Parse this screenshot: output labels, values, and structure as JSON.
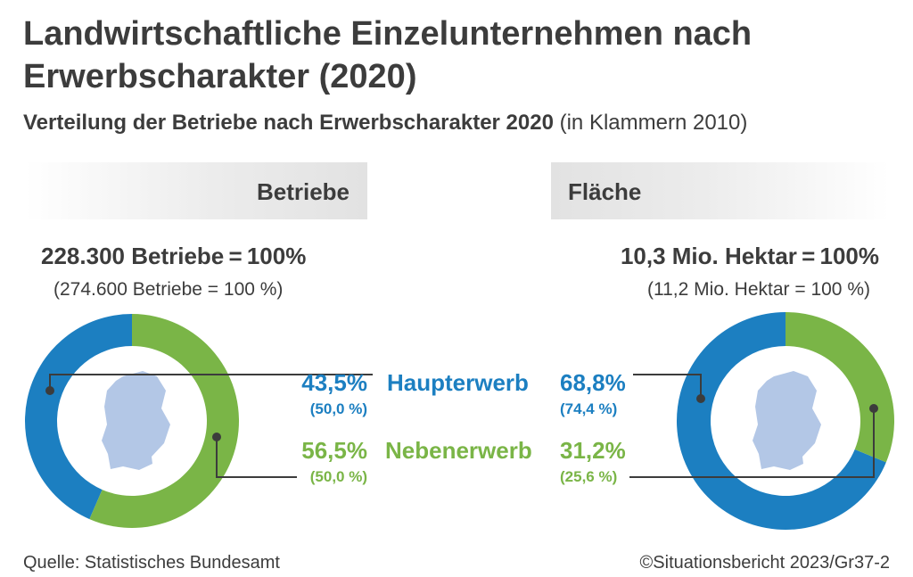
{
  "title": "Landwirtschaftliche Einzelunternehmen nach Erwerbscharakter (2020)",
  "subtitle_bold": "Verteilung der Betriebe nach Erwerbscharakter 2020",
  "subtitle_rest": " (in Klammern 2010)",
  "colors": {
    "hauptererwerb": "#1c7fc1",
    "nebenerwerb": "#7ab547",
    "map": "#b3c7e6",
    "connector": "#3c3c3c"
  },
  "chart_data": [
    {
      "type": "pie",
      "title": "Betriebe",
      "total": "228.300 Betriebe = 100%",
      "total_prev": "(274.600 Betriebe = 100 %)",
      "series": [
        {
          "name": "Haupterwerb",
          "value": 43.5,
          "label": "43,5%",
          "prev": "(50,0 %)",
          "color": "#1c7fc1"
        },
        {
          "name": "Nebenerwerb",
          "value": 56.5,
          "label": "56,5%",
          "prev": "(50,0 %)",
          "color": "#7ab547"
        }
      ]
    },
    {
      "type": "pie",
      "title": "Fläche",
      "total": "10,3 Mio. Hektar = 100%",
      "total_prev": "(11,2 Mio. Hektar = 100 %)",
      "series": [
        {
          "name": "Haupterwerb",
          "value": 68.8,
          "label": "68,8%",
          "prev": "(74,4 %)",
          "color": "#1c7fc1"
        },
        {
          "name": "Nebenerwerb",
          "value": 31.2,
          "label": "31,2%",
          "prev": "(25,6 %)",
          "color": "#7ab547"
        }
      ]
    }
  ],
  "legend": {
    "haupterwerb": "Haupterwerb",
    "nebenerwerb": "Nebenerwerb"
  },
  "footer": {
    "source": "Quelle: Statistisches Bundesamt",
    "credit": "©Situationsbericht 2023/Gr37-2"
  }
}
